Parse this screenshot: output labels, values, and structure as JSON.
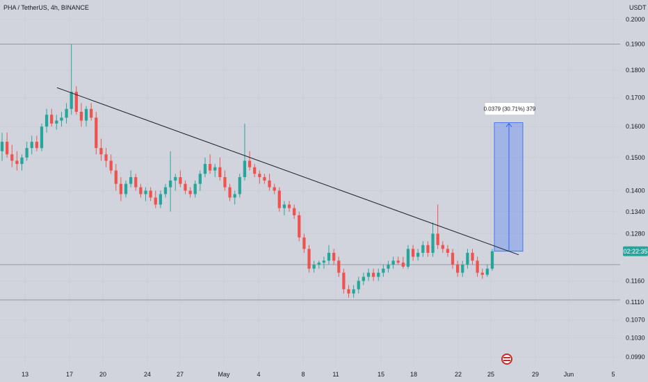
{
  "chart_data": {
    "type": "candlestick",
    "title": "PHA / TetherUS, 4h, BINANCE",
    "currency_label": "USDT",
    "y_scale": "log",
    "y_ticks": [
      "0.2000",
      "0.1900",
      "0.1800",
      "0.1700",
      "0.1600",
      "0.1500",
      "0.1400",
      "0.1340",
      "0.1280",
      "0.1160",
      "0.1110",
      "0.1070",
      "0.1030",
      "0.0990"
    ],
    "x_ticks": [
      "13",
      "17",
      "20",
      "24",
      "27",
      "May",
      "4",
      "8",
      "11",
      "15",
      "18",
      "22",
      "25",
      "29",
      "Jun",
      "5"
    ],
    "horizontal_lines": [
      0.19,
      0.12,
      0.1115
    ],
    "current_price_label": "02:22:35",
    "trendline": {
      "start": [
        "Apr 15",
        0.1735
      ],
      "end": [
        "May 26",
        0.1225
      ]
    },
    "measure": {
      "label": "0.0379 (30.71%) 379",
      "from": 0.1234,
      "to": 0.1613
    },
    "candles": [
      {
        "o": 0.152,
        "h": 0.158,
        "l": 0.149,
        "c": 0.155
      },
      {
        "o": 0.155,
        "h": 0.158,
        "l": 0.15,
        "c": 0.151
      },
      {
        "o": 0.151,
        "h": 0.154,
        "l": 0.147,
        "c": 0.149
      },
      {
        "o": 0.149,
        "h": 0.152,
        "l": 0.146,
        "c": 0.148
      },
      {
        "o": 0.148,
        "h": 0.151,
        "l": 0.146,
        "c": 0.15
      },
      {
        "o": 0.15,
        "h": 0.155,
        "l": 0.149,
        "c": 0.153
      },
      {
        "o": 0.153,
        "h": 0.157,
        "l": 0.151,
        "c": 0.155
      },
      {
        "o": 0.155,
        "h": 0.157,
        "l": 0.152,
        "c": 0.153
      },
      {
        "o": 0.153,
        "h": 0.161,
        "l": 0.152,
        "c": 0.16
      },
      {
        "o": 0.16,
        "h": 0.166,
        "l": 0.158,
        "c": 0.164
      },
      {
        "o": 0.164,
        "h": 0.166,
        "l": 0.16,
        "c": 0.161
      },
      {
        "o": 0.161,
        "h": 0.164,
        "l": 0.159,
        "c": 0.162
      },
      {
        "o": 0.162,
        "h": 0.165,
        "l": 0.16,
        "c": 0.163
      },
      {
        "o": 0.163,
        "h": 0.168,
        "l": 0.161,
        "c": 0.166
      },
      {
        "o": 0.166,
        "h": 0.19,
        "l": 0.164,
        "c": 0.172
      },
      {
        "o": 0.172,
        "h": 0.174,
        "l": 0.164,
        "c": 0.165
      },
      {
        "o": 0.165,
        "h": 0.168,
        "l": 0.16,
        "c": 0.162
      },
      {
        "o": 0.162,
        "h": 0.167,
        "l": 0.16,
        "c": 0.166
      },
      {
        "o": 0.166,
        "h": 0.168,
        "l": 0.162,
        "c": 0.163
      },
      {
        "o": 0.163,
        "h": 0.165,
        "l": 0.151,
        "c": 0.153
      },
      {
        "o": 0.153,
        "h": 0.156,
        "l": 0.149,
        "c": 0.151
      },
      {
        "o": 0.151,
        "h": 0.153,
        "l": 0.147,
        "c": 0.149
      },
      {
        "o": 0.149,
        "h": 0.151,
        "l": 0.145,
        "c": 0.146
      },
      {
        "o": 0.146,
        "h": 0.148,
        "l": 0.14,
        "c": 0.142
      },
      {
        "o": 0.142,
        "h": 0.144,
        "l": 0.137,
        "c": 0.139
      },
      {
        "o": 0.139,
        "h": 0.143,
        "l": 0.138,
        "c": 0.142
      },
      {
        "o": 0.142,
        "h": 0.146,
        "l": 0.141,
        "c": 0.144
      },
      {
        "o": 0.144,
        "h": 0.145,
        "l": 0.14,
        "c": 0.141
      },
      {
        "o": 0.141,
        "h": 0.142,
        "l": 0.138,
        "c": 0.139
      },
      {
        "o": 0.139,
        "h": 0.141,
        "l": 0.137,
        "c": 0.14
      },
      {
        "o": 0.14,
        "h": 0.141,
        "l": 0.137,
        "c": 0.138
      },
      {
        "o": 0.138,
        "h": 0.14,
        "l": 0.135,
        "c": 0.136
      },
      {
        "o": 0.136,
        "h": 0.14,
        "l": 0.135,
        "c": 0.139
      },
      {
        "o": 0.139,
        "h": 0.142,
        "l": 0.138,
        "c": 0.141
      },
      {
        "o": 0.141,
        "h": 0.152,
        "l": 0.134,
        "c": 0.143
      },
      {
        "o": 0.143,
        "h": 0.145,
        "l": 0.14,
        "c": 0.144
      },
      {
        "o": 0.144,
        "h": 0.146,
        "l": 0.141,
        "c": 0.142
      },
      {
        "o": 0.142,
        "h": 0.143,
        "l": 0.139,
        "c": 0.14
      },
      {
        "o": 0.14,
        "h": 0.141,
        "l": 0.138,
        "c": 0.139
      },
      {
        "o": 0.139,
        "h": 0.143,
        "l": 0.138,
        "c": 0.142
      },
      {
        "o": 0.142,
        "h": 0.146,
        "l": 0.14,
        "c": 0.145
      },
      {
        "o": 0.145,
        "h": 0.15,
        "l": 0.144,
        "c": 0.148
      },
      {
        "o": 0.148,
        "h": 0.151,
        "l": 0.145,
        "c": 0.146
      },
      {
        "o": 0.146,
        "h": 0.148,
        "l": 0.144,
        "c": 0.147
      },
      {
        "o": 0.147,
        "h": 0.15,
        "l": 0.143,
        "c": 0.144
      },
      {
        "o": 0.144,
        "h": 0.146,
        "l": 0.14,
        "c": 0.141
      },
      {
        "o": 0.141,
        "h": 0.142,
        "l": 0.137,
        "c": 0.138
      },
      {
        "o": 0.138,
        "h": 0.14,
        "l": 0.136,
        "c": 0.139
      },
      {
        "o": 0.139,
        "h": 0.145,
        "l": 0.138,
        "c": 0.144
      },
      {
        "o": 0.144,
        "h": 0.161,
        "l": 0.143,
        "c": 0.149
      },
      {
        "o": 0.149,
        "h": 0.152,
        "l": 0.146,
        "c": 0.147
      },
      {
        "o": 0.147,
        "h": 0.148,
        "l": 0.144,
        "c": 0.145
      },
      {
        "o": 0.145,
        "h": 0.146,
        "l": 0.142,
        "c": 0.144
      },
      {
        "o": 0.144,
        "h": 0.145,
        "l": 0.142,
        "c": 0.143
      },
      {
        "o": 0.143,
        "h": 0.145,
        "l": 0.14,
        "c": 0.141
      },
      {
        "o": 0.141,
        "h": 0.142,
        "l": 0.139,
        "c": 0.14
      },
      {
        "o": 0.14,
        "h": 0.141,
        "l": 0.134,
        "c": 0.135
      },
      {
        "o": 0.135,
        "h": 0.137,
        "l": 0.133,
        "c": 0.136
      },
      {
        "o": 0.136,
        "h": 0.137,
        "l": 0.134,
        "c": 0.135
      },
      {
        "o": 0.135,
        "h": 0.136,
        "l": 0.132,
        "c": 0.133
      },
      {
        "o": 0.133,
        "h": 0.134,
        "l": 0.126,
        "c": 0.127
      },
      {
        "o": 0.127,
        "h": 0.128,
        "l": 0.123,
        "c": 0.124
      },
      {
        "o": 0.124,
        "h": 0.125,
        "l": 0.118,
        "c": 0.119
      },
      {
        "o": 0.119,
        "h": 0.121,
        "l": 0.118,
        "c": 0.12
      },
      {
        "o": 0.12,
        "h": 0.121,
        "l": 0.119,
        "c": 0.1205
      },
      {
        "o": 0.1205,
        "h": 0.122,
        "l": 0.119,
        "c": 0.121
      },
      {
        "o": 0.121,
        "h": 0.125,
        "l": 0.12,
        "c": 0.123
      },
      {
        "o": 0.123,
        "h": 0.124,
        "l": 0.12,
        "c": 0.121
      },
      {
        "o": 0.121,
        "h": 0.122,
        "l": 0.117,
        "c": 0.118
      },
      {
        "o": 0.118,
        "h": 0.119,
        "l": 0.113,
        "c": 0.114
      },
      {
        "o": 0.114,
        "h": 0.115,
        "l": 0.112,
        "c": 0.113
      },
      {
        "o": 0.113,
        "h": 0.115,
        "l": 0.112,
        "c": 0.114
      },
      {
        "o": 0.114,
        "h": 0.117,
        "l": 0.113,
        "c": 0.116
      },
      {
        "o": 0.116,
        "h": 0.118,
        "l": 0.115,
        "c": 0.117
      },
      {
        "o": 0.117,
        "h": 0.119,
        "l": 0.116,
        "c": 0.118
      },
      {
        "o": 0.118,
        "h": 0.119,
        "l": 0.116,
        "c": 0.117
      },
      {
        "o": 0.117,
        "h": 0.119,
        "l": 0.116,
        "c": 0.118
      },
      {
        "o": 0.118,
        "h": 0.12,
        "l": 0.117,
        "c": 0.119
      },
      {
        "o": 0.119,
        "h": 0.121,
        "l": 0.118,
        "c": 0.12
      },
      {
        "o": 0.12,
        "h": 0.122,
        "l": 0.119,
        "c": 0.121
      },
      {
        "o": 0.121,
        "h": 0.122,
        "l": 0.12,
        "c": 0.1205
      },
      {
        "o": 0.1205,
        "h": 0.122,
        "l": 0.119,
        "c": 0.1195
      },
      {
        "o": 0.1195,
        "h": 0.125,
        "l": 0.119,
        "c": 0.124
      },
      {
        "o": 0.124,
        "h": 0.125,
        "l": 0.121,
        "c": 0.122
      },
      {
        "o": 0.122,
        "h": 0.124,
        "l": 0.121,
        "c": 0.123
      },
      {
        "o": 0.123,
        "h": 0.126,
        "l": 0.122,
        "c": 0.125
      },
      {
        "o": 0.125,
        "h": 0.126,
        "l": 0.122,
        "c": 0.123
      },
      {
        "o": 0.123,
        "h": 0.131,
        "l": 0.122,
        "c": 0.128
      },
      {
        "o": 0.128,
        "h": 0.136,
        "l": 0.124,
        "c": 0.125
      },
      {
        "o": 0.125,
        "h": 0.126,
        "l": 0.123,
        "c": 0.124
      },
      {
        "o": 0.124,
        "h": 0.125,
        "l": 0.122,
        "c": 0.123
      },
      {
        "o": 0.123,
        "h": 0.124,
        "l": 0.119,
        "c": 0.12
      },
      {
        "o": 0.12,
        "h": 0.121,
        "l": 0.117,
        "c": 0.118
      },
      {
        "o": 0.118,
        "h": 0.121,
        "l": 0.117,
        "c": 0.12
      },
      {
        "o": 0.12,
        "h": 0.124,
        "l": 0.119,
        "c": 0.123
      },
      {
        "o": 0.123,
        "h": 0.124,
        "l": 0.12,
        "c": 0.121
      },
      {
        "o": 0.121,
        "h": 0.122,
        "l": 0.117,
        "c": 0.118
      },
      {
        "o": 0.118,
        "h": 0.119,
        "l": 0.1165,
        "c": 0.1175
      },
      {
        "o": 0.1175,
        "h": 0.12,
        "l": 0.117,
        "c": 0.119
      },
      {
        "o": 0.119,
        "h": 0.124,
        "l": 0.1185,
        "c": 0.1234
      }
    ]
  }
}
